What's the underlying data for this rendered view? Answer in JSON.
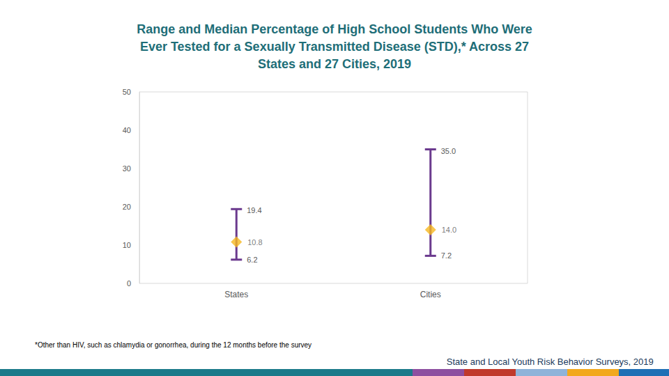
{
  "chart_data": {
    "type": "range",
    "title": "Range and Median Percentage of High School Students Who Were\nEver Tested for a Sexually Transmitted Disease (STD),* Across 27\nStates and 27 Cities, 2019",
    "annotations": [
      "*Other than HIV, such as chlamydia or gonorrhea, during the 12 months before the survey",
      "State and Local Youth Risk Behavior Surveys, 2019"
    ],
    "categories": [
      "States",
      "Cities"
    ],
    "series": [
      {
        "type": "errorbar",
        "color": "#6b3a8e",
        "low": [
          6.2,
          7.2
        ],
        "low_labels": [
          "6.2",
          "7.2"
        ],
        "high": [
          19.4,
          35.0
        ],
        "high_labels": [
          "19.4",
          "35.0"
        ]
      },
      {
        "type": "scatter",
        "color": "#f6b81f",
        "marker": "diamond",
        "values": [
          10.8,
          14.0
        ],
        "value_labels": [
          "10.8",
          "14.0"
        ]
      }
    ],
    "ylim": [
      0,
      50
    ],
    "yticks": [
      0,
      10,
      20,
      30,
      40,
      50
    ],
    "grid": false,
    "data_labels": true
  }
}
